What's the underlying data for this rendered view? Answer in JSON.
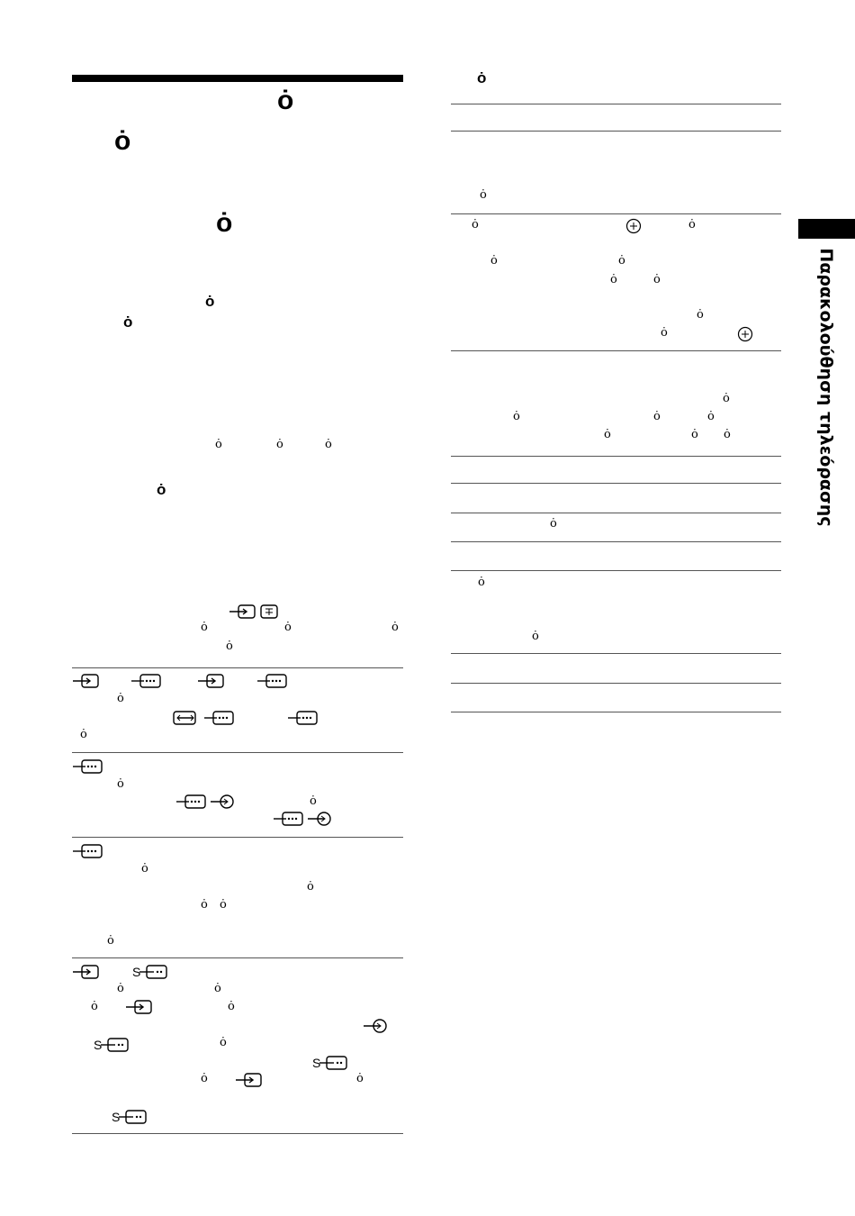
{
  "glyph": "ȯ",
  "side_tab": {
    "label": "Παρακολούθηση τηλεόρασης"
  },
  "icons": {
    "input": "input-arrow-icon",
    "av_multi": "av-multi-input-icon",
    "output": "output-arrow-icon",
    "svideo_prefix": "S",
    "plus_circle": "plus-circle-icon",
    "text_mode": "teletext-icon"
  }
}
